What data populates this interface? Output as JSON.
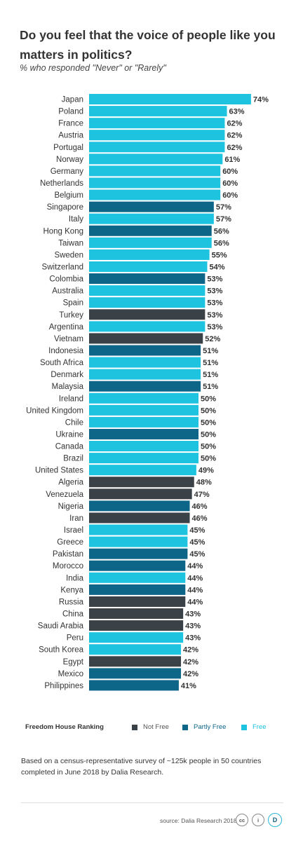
{
  "title": "Do you feel that the voice of people like you matters in politics?",
  "subtitle": "% who responded \"Never\" or \"Rarely\"",
  "colors": {
    "Not Free": "#3a4147",
    "Partly Free": "#0d6587",
    "Free": "#1dc3df"
  },
  "chart_data": {
    "type": "bar",
    "orientation": "horizontal",
    "title": "Do you feel that the voice of people like you matters in politics?",
    "subtitle": "% who responded \"Never\" or \"Rarely\"",
    "value_suffix": "%",
    "categories": [
      "Japan",
      "Poland",
      "France",
      "Austria",
      "Portugal",
      "Norway",
      "Germany",
      "Netherlands",
      "Belgium",
      "Singapore",
      "Italy",
      "Hong Kong",
      "Taiwan",
      "Sweden",
      "Switzerland",
      "Colombia",
      "Australia",
      "Spain",
      "Turkey",
      "Argentina",
      "Vietnam",
      "Indonesia",
      "South Africa",
      "Denmark",
      "Malaysia",
      "Ireland",
      "United Kingdom",
      "Chile",
      "Ukraine",
      "Canada",
      "Brazil",
      "United States",
      "Algeria",
      "Venezuela",
      "Nigeria",
      "Iran",
      "Israel",
      "Greece",
      "Pakistan",
      "Morocco",
      "India",
      "Kenya",
      "Russia",
      "China",
      "Saudi Arabia",
      "Peru",
      "South Korea",
      "Egypt",
      "Mexico",
      "Philippines"
    ],
    "values": [
      74,
      63,
      62,
      62,
      62,
      61,
      60,
      60,
      60,
      57,
      57,
      56,
      56,
      55,
      54,
      53,
      53,
      53,
      53,
      53,
      52,
      51,
      51,
      51,
      51,
      50,
      50,
      50,
      50,
      50,
      50,
      49,
      48,
      47,
      46,
      46,
      45,
      45,
      45,
      44,
      44,
      44,
      44,
      43,
      43,
      43,
      42,
      42,
      42,
      41
    ],
    "groups": [
      "Free",
      "Free",
      "Free",
      "Free",
      "Free",
      "Free",
      "Free",
      "Free",
      "Free",
      "Partly Free",
      "Free",
      "Partly Free",
      "Free",
      "Free",
      "Free",
      "Partly Free",
      "Free",
      "Free",
      "Not Free",
      "Free",
      "Not Free",
      "Partly Free",
      "Free",
      "Free",
      "Partly Free",
      "Free",
      "Free",
      "Free",
      "Partly Free",
      "Free",
      "Free",
      "Free",
      "Not Free",
      "Not Free",
      "Partly Free",
      "Not Free",
      "Free",
      "Free",
      "Partly Free",
      "Partly Free",
      "Free",
      "Partly Free",
      "Not Free",
      "Not Free",
      "Not Free",
      "Free",
      "Free",
      "Not Free",
      "Partly Free",
      "Partly Free"
    ]
  },
  "legend": {
    "title": "Freedom House Ranking",
    "items": [
      {
        "label": "Not Free",
        "color": "#3a4147"
      },
      {
        "label": "Partly Free",
        "color": "#0d6587"
      },
      {
        "label": "Free",
        "color": "#1dc3df"
      }
    ]
  },
  "note": "Based on a census-representative survey of ~125k people in 50 countries completed in June 2018 by Dalia Research.",
  "footer": {
    "source": "source: Dalia Research 2018",
    "cc_badge": "cc",
    "by_badge": "i",
    "logo_letter": "D"
  }
}
